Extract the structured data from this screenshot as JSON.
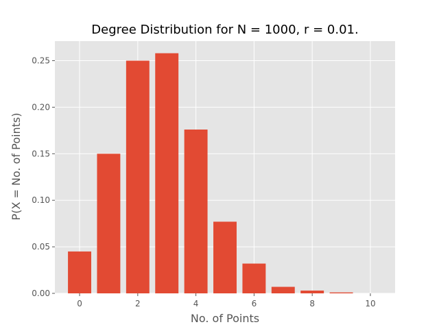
{
  "chart_data": {
    "type": "bar",
    "title": "Degree Distribution for N = 1000, r = 0.01.",
    "xlabel": "No. of Points",
    "ylabel": "P(X = No. of Points)",
    "x": [
      0,
      1,
      2,
      3,
      4,
      5,
      6,
      7,
      8,
      9,
      10
    ],
    "values": [
      0.045,
      0.15,
      0.25,
      0.258,
      0.176,
      0.077,
      0.032,
      0.007,
      0.003,
      0.001,
      0.0
    ],
    "xlim": [
      -0.85,
      10.85
    ],
    "ylim": [
      0,
      0.271
    ],
    "x_ticks": [
      0,
      2,
      4,
      6,
      8,
      10
    ],
    "y_ticks": [
      0.0,
      0.05,
      0.1,
      0.15,
      0.2,
      0.25
    ],
    "x_tick_labels": [
      "0",
      "2",
      "4",
      "6",
      "8",
      "10"
    ],
    "y_tick_labels": [
      "0.00",
      "0.05",
      "0.10",
      "0.15",
      "0.20",
      "0.25"
    ],
    "grid": true,
    "colors": {
      "bar": "#E24A33",
      "plot_background": "#E5E5E5",
      "grid": "#FFFFFF"
    }
  }
}
